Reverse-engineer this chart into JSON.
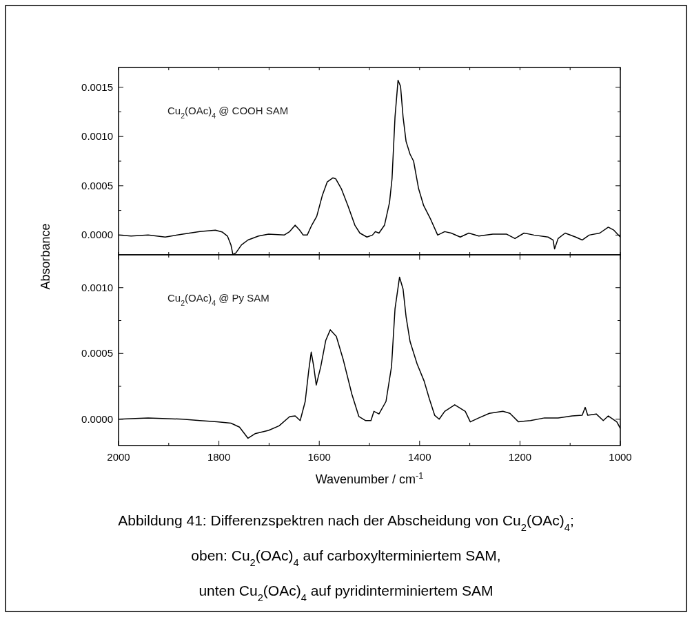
{
  "chart_data": [
    {
      "type": "line",
      "ylabel": "Absorbance",
      "tick_labels": "y",
      "xlim": [
        2000,
        1000
      ],
      "ylim": [
        -0.0002,
        0.0017
      ],
      "xticks": [
        {
          "value": 2000,
          "label": null
        },
        {
          "value": 1900,
          "label": null
        },
        {
          "value": 1800,
          "label": null
        },
        {
          "value": 1700,
          "label": null
        },
        {
          "value": 1600,
          "label": null
        },
        {
          "value": 1500,
          "label": null
        },
        {
          "value": 1400,
          "label": null
        },
        {
          "value": 1300,
          "label": null
        },
        {
          "value": 1200,
          "label": null
        },
        {
          "value": 1100,
          "label": null
        },
        {
          "value": 1000,
          "label": null
        }
      ],
      "yticks": [
        {
          "value": 0,
          "label": "0.0000"
        },
        {
          "value": 0.00025,
          "label": null
        },
        {
          "value": 0.0005,
          "label": "0.0005"
        },
        {
          "value": 0.00075,
          "label": null
        },
        {
          "value": 0.001,
          "label": "0.0010"
        },
        {
          "value": 0.00125,
          "label": null
        },
        {
          "value": 0.0015,
          "label": "0.0015"
        }
      ],
      "x": [
        2000,
        1975,
        1941,
        1907,
        1872,
        1838,
        1807,
        1793,
        1783,
        1776,
        1772,
        1766,
        1755,
        1742,
        1721,
        1701,
        1670,
        1659,
        1648,
        1639,
        1632,
        1624,
        1615,
        1605,
        1594,
        1584,
        1573,
        1567,
        1556,
        1543,
        1529,
        1519,
        1505,
        1494,
        1488,
        1481,
        1470,
        1460,
        1455,
        1449,
        1443,
        1438,
        1433,
        1427,
        1419,
        1412,
        1402,
        1392,
        1378,
        1364,
        1350,
        1337,
        1319,
        1302,
        1282,
        1254,
        1227,
        1210,
        1192,
        1172,
        1144,
        1134,
        1131,
        1124,
        1110,
        1089,
        1076,
        1062,
        1041,
        1024,
        1013,
        1000
      ],
      "series": [
        {
          "name": "Cu$_{2}$(OAc)$_{4}$ @ COOH SAM",
          "color": "#000000",
          "values": [
            0,
            -1e-05,
            0,
            -2e-05,
            1e-05,
            3.5e-05,
            5e-05,
            3e-05,
            -1e-05,
            -0.0001,
            -0.0002,
            -0.00018,
            -0.0001,
            -5e-05,
            -1e-05,
            1e-05,
            0,
            3.5e-05,
            0.0001,
            5e-05,
            0,
            0,
            0.0001,
            0.00019,
            0.0004,
            0.00054,
            0.00058,
            0.00057,
            0.00047,
            0.0003,
            0.0001,
            2e-05,
            -2e-05,
            0,
            3.5e-05,
            2e-05,
            0.0001,
            0.00033,
            0.00057,
            0.0012,
            0.00157,
            0.00151,
            0.0012,
            0.00095,
            0.00082,
            0.00075,
            0.00047,
            0.0003,
            0.00016,
            0,
            3.5e-05,
            2e-05,
            -2e-05,
            2e-05,
            -1e-05,
            1e-05,
            1e-05,
            -3.5e-05,
            2e-05,
            0,
            -2e-05,
            -5e-05,
            -0.00014,
            -3.5e-05,
            2e-05,
            -2e-05,
            -5e-05,
            0,
            2e-05,
            8e-05,
            5e-05,
            -2e-05
          ]
        }
      ]
    },
    {
      "type": "line",
      "xlabel": "Wavenumber / cm$^{-1}$",
      "xlim": [
        2000,
        1000
      ],
      "ylim": [
        -0.0002,
        0.00125
      ],
      "xticks": [
        2000,
        {
          "value": 1900,
          "label": null
        },
        1800,
        {
          "value": 1700,
          "label": null
        },
        1600,
        {
          "value": 1500,
          "label": null
        },
        1400,
        {
          "value": 1300,
          "label": null
        },
        1200,
        {
          "value": 1100,
          "label": null
        },
        1000
      ],
      "yticks": [
        {
          "value": 0,
          "label": "0.0000"
        },
        {
          "value": 0.00025,
          "label": null
        },
        {
          "value": 0.0005,
          "label": "0.0005"
        },
        {
          "value": 0.00075,
          "label": null
        },
        {
          "value": 0.001,
          "label": "0.0010"
        }
      ],
      "x": [
        2000,
        1941,
        1872,
        1838,
        1804,
        1776,
        1759,
        1749,
        1742,
        1728,
        1701,
        1680,
        1659,
        1648,
        1638,
        1628,
        1621,
        1616,
        1611,
        1606,
        1597,
        1587,
        1578,
        1566,
        1552,
        1535,
        1521,
        1508,
        1497,
        1491,
        1481,
        1467,
        1456,
        1449,
        1440,
        1433,
        1427,
        1419,
        1405,
        1391,
        1381,
        1370,
        1361,
        1350,
        1330,
        1309,
        1299,
        1282,
        1261,
        1234,
        1220,
        1203,
        1179,
        1151,
        1124,
        1096,
        1076,
        1070,
        1065,
        1048,
        1034,
        1024,
        1007,
        1000
      ],
      "series": [
        {
          "name": "Cu$_{2}$(OAc)$_{4}$ @ Py SAM",
          "color": "#000000",
          "values": [
            0,
            1e-05,
            0,
            -1e-05,
            -2e-05,
            -3e-05,
            -6e-05,
            -0.00011,
            -0.000145,
            -0.00011,
            -8.5e-05,
            -5e-05,
            2e-05,
            2.5e-05,
            -1e-05,
            0.000135,
            0.00037,
            0.00051,
            0.0004,
            0.00026,
            0.0004,
            0.0006,
            0.00068,
            0.00063,
            0.00045,
            0.00019,
            2e-05,
            -1e-05,
            -1e-05,
            6e-05,
            4e-05,
            0.000135,
            0.0004,
            0.00084,
            0.00108,
            0.00099,
            0.00078,
            0.00059,
            0.00042,
            0.00029,
            0.00016,
            3e-05,
            0,
            6e-05,
            0.00011,
            6e-05,
            -2e-05,
            1e-05,
            4.5e-05,
            6e-05,
            4.5e-05,
            -2e-05,
            -1e-05,
            1e-05,
            1e-05,
            2.5e-05,
            3e-05,
            9e-05,
            3e-05,
            4e-05,
            -1e-05,
            2.5e-05,
            -2e-05,
            -7e-05
          ]
        }
      ],
      "annotations": [
        "Abbildung 41: Differenzspektren nach der Abscheidung von Cu$_{2}$(OAc)$_{4}$;",
        "oben: Cu$_{2}$(OAc)$_{4}$ auf carboxylterminiertem SAM,",
        "unten Cu$_{2}$(OAc)$_{4}$ auf pyridinterminiertem SAM"
      ]
    }
  ]
}
